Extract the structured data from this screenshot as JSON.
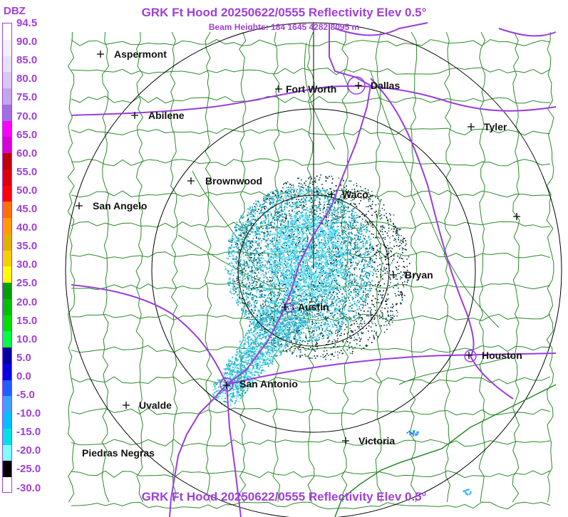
{
  "header": {
    "title": "GRK Ft Hood 20250622/0555 Reflectivity Elev 0.5°",
    "subtitle": "Beam Heights: 184 1645 4282 8095 m"
  },
  "footer": {
    "title": "GRK Ft Hood 20250622/0555 Reflectivity Elev 0.5°"
  },
  "legend": {
    "unit": "DBZ",
    "ticks": [
      "94.5",
      "90.0",
      "85.0",
      "80.0",
      "75.0",
      "70.0",
      "65.0",
      "60.0",
      "55.0",
      "50.0",
      "45.0",
      "40.0",
      "35.0",
      "30.0",
      "25.0",
      "20.0",
      "15.0",
      "10.0",
      "5.0",
      "0.0",
      "-5.0",
      "-10.0",
      "-15.0",
      "-20.0",
      "-25.0",
      "-30.0"
    ],
    "colors": [
      "#ffffff",
      "#f4f0ff",
      "#e8e0f8",
      "#d8c8f0",
      "#c0a8e8",
      "#a070e0",
      "#ff00ff",
      "#d800d8",
      "#c00000",
      "#e00000",
      "#ff0000",
      "#ff7000",
      "#ff9900",
      "#e0b000",
      "#f0d000",
      "#ffff00",
      "#00a000",
      "#00c000",
      "#00e000",
      "#00ff40",
      "#0000a0",
      "#0000e0",
      "#2060ff",
      "#40a0ff",
      "#00c0ff",
      "#00e0e8",
      "#80ffff",
      "#000000",
      "#ffffff"
    ]
  },
  "cities": [
    {
      "name": "Aspermont"
    },
    {
      "name": "Fort Worth"
    },
    {
      "name": "Dallas"
    },
    {
      "name": "Abilene"
    },
    {
      "name": "Tyler"
    },
    {
      "name": "Brownwood"
    },
    {
      "name": "Waco"
    },
    {
      "name": "San Angelo"
    },
    {
      "name": "Bryan"
    },
    {
      "name": "Austin"
    },
    {
      "name": "Houston"
    },
    {
      "name": "San Antonio"
    },
    {
      "name": "Uvalde"
    },
    {
      "name": "Victoria"
    },
    {
      "name": "Piedras Negras"
    }
  ],
  "colors": {
    "title": "#a040d8",
    "highway": "#9a3ce0",
    "county_lines": "#2a8a2a",
    "range_rings": "#000000",
    "echo_primary": "#20c0d8",
    "echo_light": "#80e8f0",
    "echo_dark": "#003030"
  }
}
